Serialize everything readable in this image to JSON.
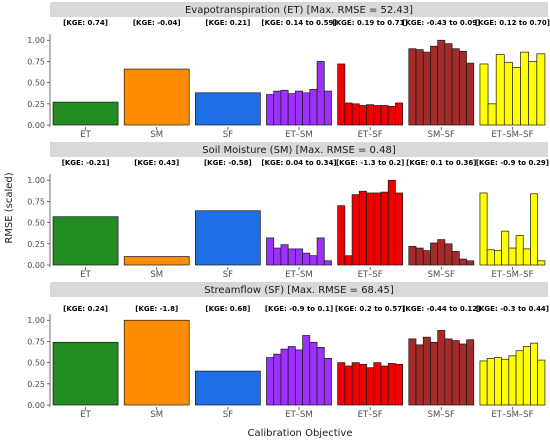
{
  "chart_data": {
    "type": "bar",
    "xlabel": "Calibration Objective",
    "ylabel": "RMSE (scaled)",
    "ylim": [
      0,
      1.05
    ],
    "y_ticks": [
      "0.00",
      "0.25",
      "0.50",
      "0.75",
      "1.00"
    ],
    "categories": [
      "ET",
      "SM",
      "SF",
      "ET–SM",
      "ET–SF",
      "SM–SF",
      "ET–SM–SF"
    ],
    "colors": {
      "ET": "#228b22",
      "SM": "#ff8c00",
      "SF": "#1e6fe6",
      "ET–SM": "#9b30ff",
      "ET–SF": "#ee0000",
      "SM–SF": "#a52a2a",
      "ET–SM–SF": "#ffff00"
    },
    "panels": [
      {
        "title": "Evapotranspiration (ET) [Max. RMSE = 52.43]",
        "kge": [
          "[KGE: 0.74]",
          "[KGE: -0.04]",
          "[KGE: 0.21]",
          "[KGE: 0.14 to 0.59]",
          "[KGE: 0.19 to 0.71]",
          "[KGE: -0.43 to 0.09]",
          "[KGE: 0.12 to 0.70]"
        ],
        "values": [
          [
            0.27
          ],
          [
            0.66
          ],
          [
            0.38
          ],
          [
            0.36,
            0.4,
            0.41,
            0.37,
            0.4,
            0.38,
            0.42,
            0.75,
            0.4
          ],
          [
            0.72,
            0.26,
            0.25,
            0.23,
            0.24,
            0.23,
            0.23,
            0.22,
            0.26
          ],
          [
            0.9,
            0.89,
            0.86,
            0.93,
            1.0,
            0.96,
            0.9,
            0.87,
            0.73
          ],
          [
            0.72,
            0.25,
            0.83,
            0.74,
            0.68,
            0.86,
            0.75,
            0.84
          ]
        ]
      },
      {
        "title": "Soil Moisture (SM) [Max. RMSE = 0.48]",
        "kge": [
          "[KGE: -0.21]",
          "[KGE: 0.43]",
          "[KGE: -0.58]",
          "[KGE: 0.04 to 0.34]",
          "[KGE: -1.3 to 0.2]",
          "[KGE: 0.1 to 0.36]",
          "[KGE: -0.9 to 0.29]"
        ],
        "values": [
          [
            0.57
          ],
          [
            0.1
          ],
          [
            0.64
          ],
          [
            0.32,
            0.2,
            0.24,
            0.19,
            0.19,
            0.14,
            0.11,
            0.32,
            0.05
          ],
          [
            0.7,
            0.11,
            0.83,
            0.87,
            0.85,
            0.85,
            0.86,
            1.0,
            0.85
          ],
          [
            0.22,
            0.2,
            0.17,
            0.26,
            0.3,
            0.25,
            0.16,
            0.07,
            0.05
          ],
          [
            0.85,
            0.18,
            0.17,
            0.4,
            0.2,
            0.35,
            0.19,
            0.84,
            0.05
          ]
        ]
      },
      {
        "title": "Streamflow (SF) [Max. RMSE = 68.45]",
        "kge": [
          "[KGE: 0.24]",
          "[KGE: -1.8]",
          "[KGE: 0.68]",
          "[KGE: -0.9 to 0.1]",
          "[KGE: 0.2 to 0.57]",
          "[KGE: -0.44 to 0.12]",
          "[KGE: -0.3 to 0.44]"
        ],
        "values": [
          [
            0.74
          ],
          [
            1.0
          ],
          [
            0.4
          ],
          [
            0.56,
            0.6,
            0.66,
            0.69,
            0.65,
            0.82,
            0.74,
            0.68,
            0.55
          ],
          [
            0.5,
            0.46,
            0.5,
            0.48,
            0.44,
            0.5,
            0.46,
            0.49,
            0.48
          ],
          [
            0.78,
            0.71,
            0.8,
            0.74,
            0.88,
            0.78,
            0.76,
            0.72,
            0.77
          ],
          [
            0.52,
            0.55,
            0.56,
            0.54,
            0.58,
            0.64,
            0.69,
            0.73,
            0.53
          ]
        ]
      }
    ]
  }
}
